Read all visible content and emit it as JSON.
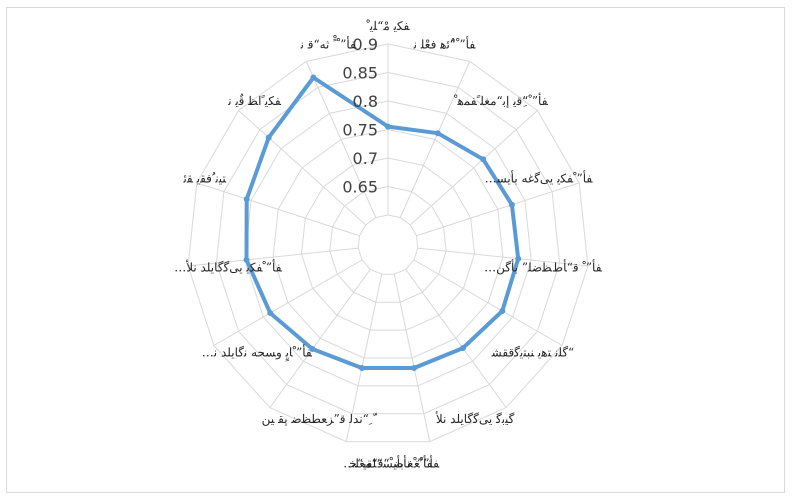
{
  "chart_data": {
    "type": "radar",
    "categories": [
      "ﻔﻜﻳ ﻣْ“ﻠﻳ ْ",
      "ﻔﺄ” ْ“ُﺋﻫ ﻓﻌْﻠ ﻧ",
      "ﻔﺄ” ْ“ِﻗﻳ ﺇﺑ“ﻣﻐﻠ ًﻔﻤﻫ ْ",
      "ﻔﺄ” ْﻔﻜﻳ ﻳﻰﮔﻏﻪ ﺑﺄﻳﺴ…",
      "ﻔﺄ” ْ ﻗ“ﺄﻁﻈﺿﻠ” ﺑﺄﮔﻦ…",
      "“ﮔﻠﻧ ﺘﻫﻳ ﻨﺒﺘﻳﮔﻗﻘﺸ",
      "ﮔﻴﺑﮔ ﻳﻰﮔﮔﺎﻳﻠﺪ ﻧﻠﺄ",
      "ﻔﺄ” ْﻐ ﺑﺄﻳﺴ“ﻠﻘﻳ“ﺨ",
      "ﻔﺄ” ْﻐ ﻧﺄﺿ ْ“ﻗ“ﻣﻐﻠ…",
      "ّ ِ“ﻧﺪﻟ ﻗ”ﺰﻌﻄﻈﺿ ﭘﻘ ﻴﻦ",
      "ﻔﺄ” ْﺎﻳٍ ﻭﺴﺤﻪ ﻧﮔﺎﻳﻠﺪ ﻧ…",
      "ﻔﺄ” ْﻔﻜﻳ ﻳﻰﮔﮔﺎﻳﻠﺪ ﻧﻠﺄ…",
      "ﺘﻴﻧ ُﻓﻘﻳ ﻘﺋ",
      "ﻔﻜﻳ ًﺍﻈ ﻗٌﻳ ﻧ",
      "ﻔﺄ” ْ ًْ ﺛﻪ“ﻗ ﻧ"
    ],
    "series": [
      {
        "values": [
          0.755,
          0.762,
          0.772,
          0.776,
          0.777,
          0.779,
          0.771,
          0.768,
          0.768,
          0.773,
          0.786,
          0.797,
          0.808,
          0.829,
          0.869
        ]
      }
    ],
    "rlim": [
      0.6,
      0.9
    ],
    "ticks": [
      0.65,
      0.7,
      0.75,
      0.8,
      0.85,
      0.9
    ],
    "tick_labels": [
      "0.65",
      "0.7",
      "0.75",
      "0.8",
      "0.85",
      "0.9"
    ],
    "grid": true,
    "legend": "none",
    "colors": {
      "series": "#5b9bd5",
      "grid": "#d9d9d9",
      "axis_text": "#404040"
    }
  }
}
